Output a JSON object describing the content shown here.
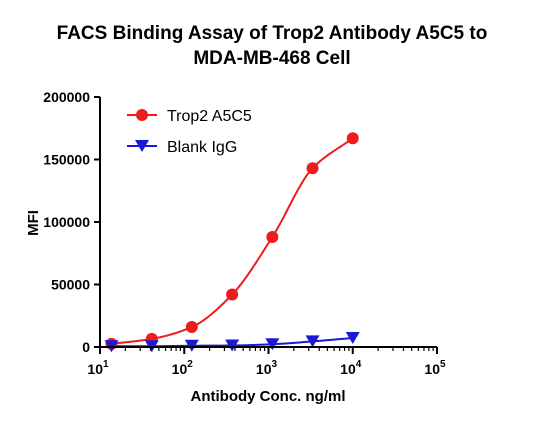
{
  "chart_data": {
    "type": "scatter",
    "title": "FACS Binding Assay of Trop2 Antibody A5C5 to",
    "subtitle": "MDA-MB-468 Cell",
    "xlabel": "Antibody Conc. ng/ml",
    "ylabel": "MFI",
    "x_scale": "log",
    "xlim": [
      10,
      100000
    ],
    "ylim": [
      0,
      200000
    ],
    "x_tick_bases": [
      "10",
      "10",
      "10",
      "10",
      "10"
    ],
    "x_tick_exponents": [
      "1",
      "2",
      "3",
      "4",
      "5"
    ],
    "x_tick_values": [
      10,
      100,
      1000,
      10000,
      100000
    ],
    "y_ticks": [
      "0",
      "50000",
      "100000",
      "150000",
      "200000"
    ],
    "y_tick_values": [
      0,
      50000,
      100000,
      150000,
      200000
    ],
    "legend_position": "top-left",
    "series": [
      {
        "name": "Trop2 A5C5",
        "color": "#ee1c1c",
        "marker": "circle",
        "x": [
          13.7,
          41.2,
          123,
          370,
          1111,
          3333,
          10000
        ],
        "y": [
          2500,
          6500,
          16000,
          42000,
          88000,
          143000,
          167000
        ]
      },
      {
        "name": "Blank IgG",
        "color": "#1a1ad6",
        "marker": "triangle-down",
        "x": [
          13.7,
          41.2,
          123,
          370,
          1111,
          3333,
          10000
        ],
        "y": [
          600,
          600,
          1000,
          1200,
          2200,
          4500,
          7200
        ]
      }
    ]
  }
}
